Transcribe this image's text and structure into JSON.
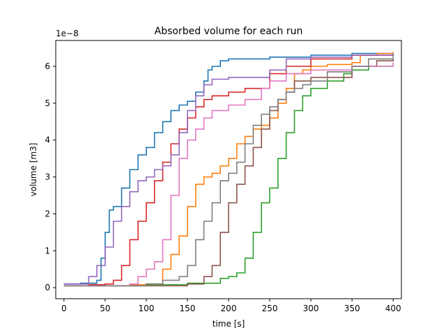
{
  "chart_data": {
    "type": "line",
    "title": "Absorbed volume for each run",
    "xlabel": "time [s]",
    "ylabel": "volume [m3]",
    "offset_label": "1e−8",
    "xlim": [
      -10,
      410
    ],
    "ylim": [
      -0.3,
      6.7
    ],
    "xticks": [
      0,
      50,
      100,
      150,
      200,
      250,
      300,
      350,
      400
    ],
    "yticks": [
      0,
      1,
      2,
      3,
      4,
      5,
      6
    ],
    "grid": false,
    "series": [
      {
        "color": "#1f77b4",
        "x": [
          0,
          20,
          40,
          45,
          50,
          55,
          60,
          70,
          80,
          90,
          100,
          110,
          120,
          130,
          140,
          150,
          160,
          170,
          175,
          180,
          190,
          200,
          250,
          300,
          350,
          400
        ],
        "y": [
          0.1,
          0.12,
          0.2,
          0.8,
          1.5,
          2.1,
          2.2,
          2.7,
          3.2,
          3.6,
          3.8,
          4.2,
          4.5,
          4.8,
          4.95,
          5.05,
          5.3,
          5.6,
          5.9,
          6.0,
          6.15,
          6.2,
          6.25,
          6.3,
          6.35,
          6.38
        ]
      },
      {
        "color": "#ff7f0e",
        "x": [
          0,
          80,
          100,
          120,
          130,
          140,
          150,
          160,
          170,
          180,
          190,
          200,
          210,
          220,
          230,
          240,
          250,
          260,
          270,
          280,
          290,
          300,
          320,
          350,
          360,
          380,
          400
        ],
        "y": [
          0.05,
          0.08,
          0.1,
          0.5,
          0.9,
          1.4,
          2.2,
          2.8,
          3.0,
          3.1,
          3.3,
          3.5,
          3.9,
          4.1,
          4.3,
          4.4,
          4.6,
          5.0,
          5.4,
          5.8,
          5.9,
          6.0,
          6.05,
          6.1,
          6.3,
          6.35,
          6.38
        ]
      },
      {
        "color": "#2ca02c",
        "x": [
          0,
          100,
          150,
          190,
          200,
          210,
          220,
          230,
          240,
          250,
          260,
          270,
          280,
          290,
          300,
          320,
          340,
          350,
          370,
          400
        ],
        "y": [
          0.05,
          0.08,
          0.12,
          0.25,
          0.3,
          0.4,
          0.8,
          1.5,
          2.3,
          2.7,
          3.5,
          4.2,
          4.8,
          5.2,
          5.4,
          5.6,
          5.8,
          5.9,
          6.0,
          6.1
        ]
      },
      {
        "color": "#d62728",
        "x": [
          0,
          30,
          50,
          60,
          70,
          80,
          90,
          100,
          110,
          120,
          130,
          140,
          150,
          160,
          170,
          180,
          200,
          220,
          250,
          270,
          300,
          350,
          400
        ],
        "y": [
          0.05,
          0.08,
          0.1,
          0.2,
          0.6,
          1.3,
          1.8,
          2.3,
          2.9,
          3.4,
          3.9,
          4.3,
          4.6,
          4.9,
          5.1,
          5.2,
          5.3,
          5.4,
          5.8,
          6.0,
          6.2,
          6.3,
          6.35
        ]
      },
      {
        "color": "#9467bd",
        "x": [
          0,
          30,
          40,
          50,
          60,
          70,
          80,
          90,
          100,
          110,
          120,
          130,
          140,
          150,
          160,
          170,
          180,
          200,
          250,
          270,
          300,
          350,
          400
        ],
        "y": [
          0.1,
          0.3,
          0.6,
          1.1,
          1.8,
          2.2,
          2.6,
          2.9,
          3.0,
          3.2,
          3.3,
          3.6,
          4.2,
          4.8,
          5.2,
          5.5,
          5.65,
          5.7,
          5.9,
          6.2,
          6.25,
          6.3,
          6.32
        ]
      },
      {
        "color": "#8c564b",
        "x": [
          0,
          150,
          170,
          180,
          190,
          200,
          210,
          220,
          230,
          240,
          250,
          260,
          270,
          280,
          300,
          350,
          380,
          400
        ],
        "y": [
          0.05,
          0.1,
          0.3,
          0.6,
          1.5,
          2.3,
          2.8,
          3.3,
          3.8,
          4.3,
          4.8,
          5.1,
          5.3,
          5.6,
          5.7,
          6.0,
          6.15,
          6.2
        ]
      },
      {
        "color": "#e377c2",
        "x": [
          0,
          80,
          90,
          100,
          110,
          120,
          130,
          140,
          150,
          160,
          170,
          180,
          200,
          220,
          240,
          250,
          270,
          300,
          350,
          400
        ],
        "y": [
          0.05,
          0.1,
          0.3,
          0.5,
          0.7,
          1.3,
          2.5,
          3.5,
          4.0,
          4.3,
          4.6,
          4.8,
          4.95,
          5.1,
          5.4,
          5.6,
          5.8,
          5.9,
          6.0,
          6.1
        ]
      },
      {
        "color": "#7f7f7f",
        "x": [
          0,
          100,
          120,
          140,
          150,
          160,
          170,
          180,
          190,
          200,
          210,
          220,
          230,
          240,
          250,
          260,
          270,
          280,
          290,
          300,
          320,
          350,
          370,
          400
        ],
        "y": [
          0.05,
          0.1,
          0.2,
          0.3,
          0.6,
          1.3,
          1.8,
          2.3,
          2.9,
          3.1,
          3.4,
          3.9,
          4.4,
          4.7,
          4.9,
          5.1,
          5.3,
          5.4,
          5.5,
          5.6,
          5.85,
          6.0,
          6.2,
          6.35
        ]
      }
    ]
  }
}
